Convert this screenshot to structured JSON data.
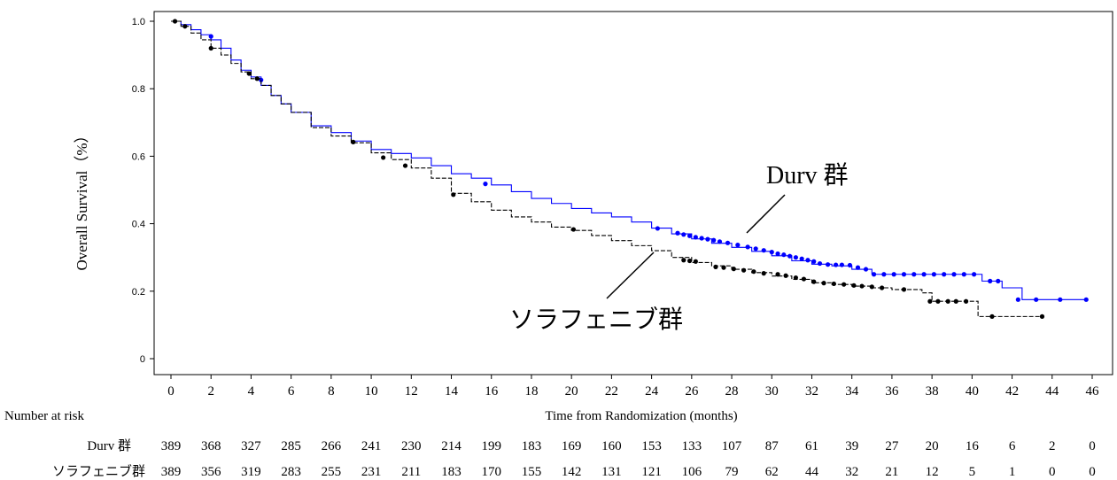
{
  "chart_data": {
    "type": "line",
    "subtype": "kaplan-meier",
    "ylabel": "Overall Survival（%）",
    "xlabel": "Time from Randomization (months)",
    "xlim": [
      0,
      46
    ],
    "ylim": [
      0,
      1.0
    ],
    "xticks": [
      0,
      2,
      4,
      6,
      8,
      10,
      12,
      14,
      16,
      18,
      20,
      22,
      24,
      26,
      28,
      30,
      32,
      34,
      36,
      38,
      40,
      42,
      44,
      46
    ],
    "yticks": [
      {
        "value": 0,
        "label": "0"
      },
      {
        "value": 0.2,
        "label": "0.2"
      },
      {
        "value": 0.4,
        "label": "0.4"
      },
      {
        "value": 0.6,
        "label": "0.6"
      },
      {
        "value": 0.8,
        "label": "0.8"
      },
      {
        "value": 1.0,
        "label": "1.0"
      }
    ],
    "grid": false,
    "series": [
      {
        "name": "Durv 群",
        "color": "#0000ff",
        "line_style": "solid",
        "x": [
          0,
          0.5,
          1,
          1.5,
          2,
          2.5,
          3,
          3.5,
          4,
          4.5,
          5,
          5.5,
          6,
          7,
          8,
          9,
          10,
          11,
          12,
          13,
          14,
          15,
          16,
          17,
          18,
          19,
          20,
          21,
          22,
          23,
          24,
          25,
          26,
          27,
          28,
          29,
          30,
          31,
          32,
          33,
          34,
          35,
          36,
          37,
          38,
          39,
          40,
          40.5,
          41,
          41.5,
          42,
          42.5,
          43,
          44,
          45.7
        ],
        "y": [
          1.0,
          0.99,
          0.975,
          0.96,
          0.945,
          0.92,
          0.885,
          0.855,
          0.835,
          0.81,
          0.78,
          0.755,
          0.73,
          0.69,
          0.67,
          0.645,
          0.62,
          0.608,
          0.595,
          0.572,
          0.548,
          0.535,
          0.515,
          0.495,
          0.475,
          0.46,
          0.445,
          0.432,
          0.42,
          0.405,
          0.387,
          0.37,
          0.355,
          0.342,
          0.33,
          0.318,
          0.305,
          0.29,
          0.28,
          0.275,
          0.265,
          0.25,
          0.25,
          0.25,
          0.25,
          0.25,
          0.25,
          0.23,
          0.23,
          0.21,
          0.21,
          0.175,
          0.175,
          0.175,
          0.175
        ],
        "censor_x": [
          2,
          4.5,
          15.7,
          24.3,
          25.3,
          25.6,
          25.9,
          26.2,
          26.5,
          26.8,
          27.1,
          27.4,
          27.8,
          28.3,
          28.8,
          29.2,
          29.6,
          30.0,
          30.3,
          30.6,
          30.9,
          31.2,
          31.5,
          31.8,
          32.1,
          32.4,
          32.8,
          33.2,
          33.5,
          33.9,
          34.3,
          34.7,
          35.1,
          35.6,
          36.1,
          36.6,
          37.1,
          37.6,
          38.1,
          38.6,
          39.1,
          39.6,
          40.1,
          40.9,
          41.3,
          42.3,
          43.2,
          44.4,
          45.7
        ],
        "censor_y": [
          0.955,
          0.826,
          0.518,
          0.386,
          0.372,
          0.368,
          0.364,
          0.36,
          0.357,
          0.354,
          0.351,
          0.347,
          0.343,
          0.337,
          0.331,
          0.326,
          0.321,
          0.316,
          0.311,
          0.308,
          0.304,
          0.3,
          0.296,
          0.292,
          0.288,
          0.282,
          0.279,
          0.278,
          0.278,
          0.277,
          0.27,
          0.265,
          0.25,
          0.25,
          0.25,
          0.25,
          0.25,
          0.25,
          0.25,
          0.25,
          0.25,
          0.25,
          0.25,
          0.23,
          0.23,
          0.175,
          0.175,
          0.175,
          0.175
        ]
      },
      {
        "name": "ソラフェニブ群",
        "color": "#000000",
        "line_style": "dashed",
        "x": [
          0,
          0.5,
          1,
          1.5,
          2,
          2.5,
          3,
          3.5,
          4,
          4.5,
          5,
          5.5,
          6,
          7,
          8,
          9,
          10,
          11,
          12,
          13,
          14,
          15,
          16,
          17,
          18,
          19,
          20,
          21,
          22,
          23,
          24,
          25,
          26,
          27,
          28,
          29,
          30,
          31,
          32,
          33,
          34,
          35,
          36,
          37,
          37.5,
          38,
          39,
          40,
          40.3,
          41,
          42,
          43,
          43.5
        ],
        "y": [
          1.0,
          0.985,
          0.965,
          0.945,
          0.92,
          0.9,
          0.875,
          0.85,
          0.83,
          0.81,
          0.78,
          0.755,
          0.73,
          0.685,
          0.66,
          0.64,
          0.61,
          0.59,
          0.565,
          0.535,
          0.49,
          0.465,
          0.44,
          0.42,
          0.405,
          0.39,
          0.38,
          0.365,
          0.35,
          0.335,
          0.32,
          0.3,
          0.285,
          0.275,
          0.265,
          0.255,
          0.245,
          0.235,
          0.225,
          0.22,
          0.215,
          0.21,
          0.205,
          0.205,
          0.195,
          0.17,
          0.17,
          0.17,
          0.125,
          0.125,
          0.125,
          0.125,
          0.125
        ],
        "censor_x": [
          0.2,
          0.7,
          2,
          3.9,
          4.3,
          9.1,
          10.6,
          11.7,
          14.1,
          20.1,
          25.6,
          25.9,
          26.2,
          27.2,
          27.6,
          28.1,
          28.6,
          29.1,
          29.6,
          30.3,
          30.7,
          31.2,
          31.6,
          32.1,
          32.6,
          33.1,
          33.6,
          34.1,
          34.5,
          35.0,
          35.5,
          36.6,
          37.9,
          38.3,
          38.8,
          39.2,
          39.7,
          41.0,
          43.5
        ],
        "censor_y": [
          1.0,
          0.985,
          0.92,
          0.845,
          0.83,
          0.642,
          0.596,
          0.572,
          0.486,
          0.383,
          0.292,
          0.29,
          0.288,
          0.272,
          0.27,
          0.266,
          0.262,
          0.258,
          0.253,
          0.25,
          0.246,
          0.24,
          0.236,
          0.228,
          0.224,
          0.222,
          0.22,
          0.217,
          0.215,
          0.213,
          0.21,
          0.205,
          0.17,
          0.17,
          0.17,
          0.17,
          0.17,
          0.125,
          0.125
        ]
      }
    ],
    "annotations": [
      {
        "text": "Durv 群",
        "series": "Durv 群"
      },
      {
        "text": "ソラフェニブ群",
        "series": "ソラフェニブ群"
      }
    ],
    "risk_table": {
      "header": "Number at risk",
      "rows": [
        {
          "label": "Durv 群",
          "values": [
            389,
            368,
            327,
            285,
            266,
            241,
            230,
            214,
            199,
            183,
            169,
            160,
            153,
            133,
            107,
            87,
            61,
            39,
            27,
            20,
            16,
            6,
            2,
            0
          ]
        },
        {
          "label": "ソラフェニブ群",
          "values": [
            389,
            356,
            319,
            283,
            255,
            231,
            211,
            183,
            170,
            155,
            142,
            131,
            121,
            106,
            79,
            62,
            44,
            32,
            21,
            12,
            5,
            1,
            0,
            0
          ]
        }
      ]
    }
  }
}
